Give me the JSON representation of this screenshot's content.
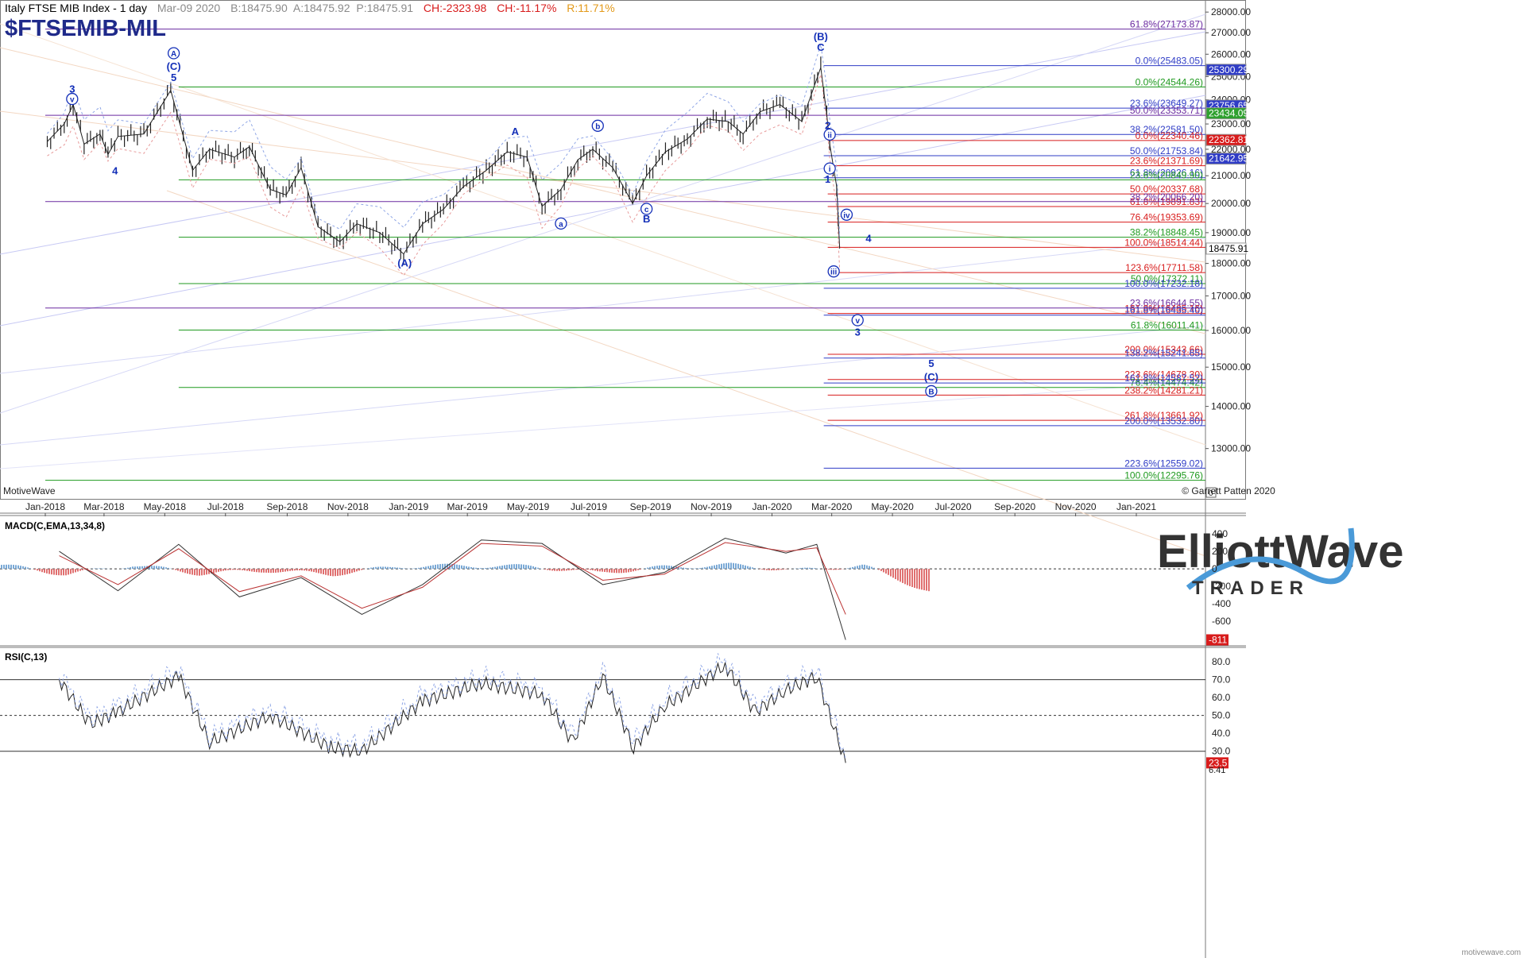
{
  "header": {
    "title": "Italy FTSE MIB Index - 1 day",
    "date": "Mar-09 2020",
    "bid": "B:18475.90",
    "ask": "A:18475.92",
    "price": "P:18475.91",
    "change": "CH:-2323.98",
    "change_pct": "CH:-11.17%",
    "range": "R:11.71%",
    "symbol": "$FTSEMIB-MIL"
  },
  "colors": {
    "blue_fib": "#2f3cc6",
    "red_fib": "#d81c1c",
    "green_fib": "#1f9a1f",
    "purple_fib": "#6a2aa0",
    "wave_label": "#1430b8",
    "macd_pos": "#7aa9d6",
    "macd_neg": "#e07070",
    "last_price": "#2ea02e"
  },
  "footer": {
    "platform": "MotiveWave",
    "copyright": "© Garrett Patten 2020",
    "brand_top": "ElliottWave",
    "brand_bottom": "TRADER",
    "watermark": "motivewave.com"
  },
  "chart_data": [
    {
      "type": "line",
      "panel": "price",
      "title": "Italy FTSE MIB Index - 1 day",
      "x_ticks": [
        "Jan-2018",
        "Mar-2018",
        "May-2018",
        "Jul-2018",
        "Sep-2018",
        "Nov-2018",
        "Jan-2019",
        "Mar-2019",
        "May-2019",
        "Jul-2019",
        "Sep-2019",
        "Nov-2019",
        "Jan-2020",
        "Mar-2020",
        "May-2020",
        "Jul-2020",
        "Sep-2020",
        "Nov-2020",
        "Jan-2021"
      ],
      "y_ticks": [
        28000,
        27000,
        26000,
        25000,
        24000,
        23000,
        22000,
        21000,
        20000,
        19000,
        18000,
        17000,
        16000,
        15000,
        14000,
        13000
      ],
      "y_scale": "log",
      "ylim": [
        11900,
        28600
      ],
      "series": [
        {
          "x": [
            "2018-01-03",
            "2018-01-20",
            "2018-01-29",
            "2018-02-09",
            "2018-02-25",
            "2018-03-05",
            "2018-03-15",
            "2018-04-10",
            "2018-05-07",
            "2018-05-29",
            "2018-06-15",
            "2018-07-10",
            "2018-07-25",
            "2018-08-15",
            "2018-08-31",
            "2018-09-15",
            "2018-10-02",
            "2018-10-24",
            "2018-11-10",
            "2018-12-03",
            "2018-12-27",
            "2019-01-15",
            "2019-02-05",
            "2019-02-25",
            "2019-03-20",
            "2019-04-10",
            "2019-04-30",
            "2019-05-15",
            "2019-06-03",
            "2019-06-20",
            "2019-07-05",
            "2019-07-25",
            "2019-08-14",
            "2019-08-28",
            "2019-09-16",
            "2019-10-08",
            "2019-10-28",
            "2019-11-18",
            "2019-12-03",
            "2019-12-20",
            "2020-01-09",
            "2020-01-31",
            "2020-02-19",
            "2020-02-25",
            "2020-02-28",
            "2020-03-06",
            "2020-03-09"
          ],
          "y": [
            22300,
            23000,
            23800,
            22200,
            22600,
            21800,
            22500,
            22600,
            24400,
            21200,
            22000,
            21700,
            22100,
            20500,
            20300,
            21300,
            19200,
            18700,
            19300,
            19000,
            18300,
            19300,
            19800,
            20600,
            21200,
            21900,
            21700,
            19900,
            20500,
            21600,
            22000,
            21300,
            20000,
            21000,
            21900,
            22400,
            23200,
            23100,
            22600,
            23500,
            23800,
            23100,
            25400,
            23400,
            22200,
            20600,
            18475.91
          ]
        }
      ],
      "last_value": 18475.91,
      "right_labels": {
        "red": [
          "22362.81"
        ],
        "blue": [
          "25300.29",
          "23756.65",
          "21642.95"
        ],
        "green": [
          "23434.09"
        ],
        "white": [
          "18475.91"
        ]
      },
      "fib_lines": [
        {
          "label": "61.8%(27173.87)",
          "value": 27173.87,
          "color": "purple",
          "x0": "2018-01-01"
        },
        {
          "label": "0.0%(25483.05)",
          "value": 25483.05,
          "color": "blue",
          "x0": "2020-02-22"
        },
        {
          "label": "0.0%(24544.26)",
          "value": 24544.26,
          "color": "green",
          "x0": "2018-05-15"
        },
        {
          "label": "23.6%(23649.27)",
          "value": 23649.27,
          "color": "blue",
          "x0": "2020-02-22"
        },
        {
          "label": "50.0%(23353.71)",
          "value": 23353.71,
          "color": "purple",
          "x0": "2018-01-01"
        },
        {
          "label": "38.2%(22581.50)",
          "value": 22581.5,
          "color": "blue",
          "x0": "2020-02-22"
        },
        {
          "label": "0.0%(22340.46)",
          "value": 22340.46,
          "color": "red",
          "x0": "2020-02-26"
        },
        {
          "label": "50.0%(21753.84)",
          "value": 21753.84,
          "color": "blue",
          "x0": "2020-02-22"
        },
        {
          "label": "23.6%(21371.69)",
          "value": 21371.69,
          "color": "red",
          "x0": "2020-02-26"
        },
        {
          "label": "61.8%(20926.16)",
          "value": 20926.16,
          "color": "blue",
          "x0": "2020-02-22"
        },
        {
          "label": "23.6%(20849.90)",
          "value": 20849.9,
          "color": "green",
          "x0": "2018-05-15"
        },
        {
          "label": "50.0%(20337.68)",
          "value": 20337.68,
          "color": "red",
          "x0": "2020-02-26"
        },
        {
          "label": "61.8%(19891.83)",
          "value": 19891.83,
          "color": "red",
          "x0": "2020-02-26"
        },
        {
          "label": "38.2%(20066.20)",
          "value": 20066.2,
          "color": "purple",
          "x0": "2018-01-01"
        },
        {
          "label": "76.4%(19353.69)",
          "value": 19353.69,
          "color": "red",
          "x0": "2020-02-26"
        },
        {
          "label": "38.2%(18848.45)",
          "value": 18848.45,
          "color": "green",
          "x0": "2018-05-15"
        },
        {
          "label": "100.0%(18514.44)",
          "value": 18514.44,
          "color": "red",
          "x0": "2020-02-26"
        },
        {
          "label": "123.6%(17711.58)",
          "value": 17711.58,
          "color": "red",
          "x0": "2020-02-26"
        },
        {
          "label": "50.0%(17372.11)",
          "value": 17372.11,
          "color": "green",
          "x0": "2018-05-15"
        },
        {
          "label": "100.0%(17232.18)",
          "value": 17232.18,
          "color": "blue",
          "x0": "2020-02-22"
        },
        {
          "label": "23.6%(16644.55)",
          "value": 16644.55,
          "color": "purple",
          "x0": "2018-01-01"
        },
        {
          "label": "161.8%(16485.16)",
          "value": 16485.16,
          "color": "red",
          "x0": "2020-02-26"
        },
        {
          "label": "161.8%(16435.40)",
          "value": 16435.4,
          "color": "blue",
          "x0": "2020-02-22"
        },
        {
          "label": "61.8%(16011.41)",
          "value": 16011.41,
          "color": "green",
          "x0": "2018-05-15"
        },
        {
          "label": "200.0%(15343.66)",
          "value": 15343.66,
          "color": "red",
          "x0": "2020-02-26"
        },
        {
          "label": "138.2%(15241.65)",
          "value": 15241.65,
          "color": "blue",
          "x0": "2020-02-22"
        },
        {
          "label": "223.6%(14678.30)",
          "value": 14678.3,
          "color": "red",
          "x0": "2020-02-26"
        },
        {
          "label": "76.4%(14474.42)",
          "value": 14474.42,
          "color": "green",
          "x0": "2018-05-15"
        },
        {
          "label": "161.8%(14587.52)",
          "value": 14587.52,
          "color": "blue",
          "x0": "2020-02-22"
        },
        {
          "label": "238.2%(14281.21)",
          "value": 14281.21,
          "color": "red",
          "x0": "2020-02-26"
        },
        {
          "label": "261.8%(13661.92)",
          "value": 13661.92,
          "color": "red",
          "x0": "2020-02-26"
        },
        {
          "label": "200.0%(13532.80)",
          "value": 13532.8,
          "color": "blue",
          "x0": "2020-02-22"
        },
        {
          "label": "223.6%(12559.02)",
          "value": 12559.02,
          "color": "blue",
          "x0": "2020-02-22"
        },
        {
          "label": "100.0%(12295.76)",
          "value": 12295.76,
          "color": "green",
          "x0": "2018-01-01"
        }
      ],
      "wave_labels": [
        {
          "text": "3",
          "x": "2018-01-28",
          "y": 24300
        },
        {
          "text": "v",
          "x": "2018-01-28",
          "y": 23900,
          "circled": true
        },
        {
          "text": "4",
          "x": "2018-03-12",
          "y": 21050
        },
        {
          "text": "A",
          "x": "2018-05-10",
          "y": 25900,
          "circled": true
        },
        {
          "text": "(C)",
          "x": "2018-05-10",
          "y": 25300
        },
        {
          "text": "5",
          "x": "2018-05-10",
          "y": 24800
        },
        {
          "text": "(A)",
          "x": "2018-12-28",
          "y": 17900
        },
        {
          "text": "A",
          "x": "2019-04-18",
          "y": 22550
        },
        {
          "text": "a",
          "x": "2019-06-03",
          "y": 19200,
          "circled": true
        },
        {
          "text": "b",
          "x": "2019-07-10",
          "y": 22800,
          "circled": true
        },
        {
          "text": "c",
          "x": "2019-08-28",
          "y": 19700,
          "circled": true
        },
        {
          "text": "B",
          "x": "2019-08-28",
          "y": 19350
        },
        {
          "text": "(B)",
          "x": "2020-02-19",
          "y": 26650
        },
        {
          "text": "C",
          "x": "2020-02-19",
          "y": 26150
        },
        {
          "text": "2",
          "x": "2020-02-26",
          "y": 22800
        },
        {
          "text": "ii",
          "x": "2020-02-28",
          "y": 22450,
          "circled": true
        },
        {
          "text": "i",
          "x": "2020-02-28",
          "y": 21150,
          "circled": true
        },
        {
          "text": "1",
          "x": "2020-02-26",
          "y": 20750
        },
        {
          "text": "iv",
          "x": "2020-03-16",
          "y": 19500,
          "circled": true
        },
        {
          "text": "4",
          "x": "2020-04-07",
          "y": 18700
        },
        {
          "text": "iii",
          "x": "2020-03-03",
          "y": 17650,
          "circled": true
        },
        {
          "text": "v",
          "x": "2020-03-27",
          "y": 16200,
          "circled": true
        },
        {
          "text": "3",
          "x": "2020-03-27",
          "y": 15850
        },
        {
          "text": "5",
          "x": "2020-06-09",
          "y": 15000
        },
        {
          "text": "(C)",
          "x": "2020-06-09",
          "y": 14650
        },
        {
          "text": "B",
          "x": "2020-06-09",
          "y": 14300,
          "circled": true
        }
      ]
    },
    {
      "type": "line",
      "panel": "macd",
      "title": "MACD(C,EMA,13,34,8)",
      "y_ticks": [
        400,
        200,
        0,
        -200,
        -400,
        -600
      ],
      "ylim": [
        -870,
        600
      ],
      "last_value": "-811",
      "series": [
        {
          "name": "MACD",
          "x": [
            "2018-01",
            "2018-03",
            "2018-05",
            "2018-07",
            "2018-09",
            "2018-11",
            "2019-01",
            "2019-03",
            "2019-05",
            "2019-07",
            "2019-09",
            "2019-11",
            "2020-01",
            "2020-02",
            "2020-03"
          ],
          "y": [
            200,
            -250,
            280,
            -320,
            -100,
            -520,
            -180,
            330,
            290,
            -180,
            -40,
            350,
            180,
            280,
            -811
          ]
        },
        {
          "name": "Signal",
          "x": [
            "2018-01",
            "2018-03",
            "2018-05",
            "2018-07",
            "2018-09",
            "2018-11",
            "2019-01",
            "2019-03",
            "2019-05",
            "2019-07",
            "2019-09",
            "2019-11",
            "2020-01",
            "2020-02",
            "2020-03"
          ],
          "y": [
            150,
            -180,
            230,
            -260,
            -80,
            -450,
            -210,
            290,
            260,
            -130,
            -60,
            300,
            200,
            240,
            -520
          ]
        }
      ]
    },
    {
      "type": "line",
      "panel": "rsi",
      "title": "RSI(C,13)",
      "y_ticks": [
        80.0,
        70.0,
        60.0,
        50.0,
        40.0,
        30.0
      ],
      "ylim": [
        17,
        88
      ],
      "last_value": "23.5",
      "bottom_label": "6.41",
      "series": [
        {
          "name": "RSI",
          "x": [
            "2018-01",
            "2018-02",
            "2018-03",
            "2018-05",
            "2018-06",
            "2018-08",
            "2018-10",
            "2018-11",
            "2019-01",
            "2019-03",
            "2019-05",
            "2019-06",
            "2019-07",
            "2019-08",
            "2019-09",
            "2019-11",
            "2019-12",
            "2020-01",
            "2020-02",
            "2020-03"
          ],
          "y": [
            70,
            45,
            52,
            72,
            35,
            50,
            32,
            30,
            58,
            68,
            62,
            35,
            72,
            32,
            55,
            78,
            52,
            64,
            72,
            23.5
          ]
        }
      ]
    }
  ]
}
